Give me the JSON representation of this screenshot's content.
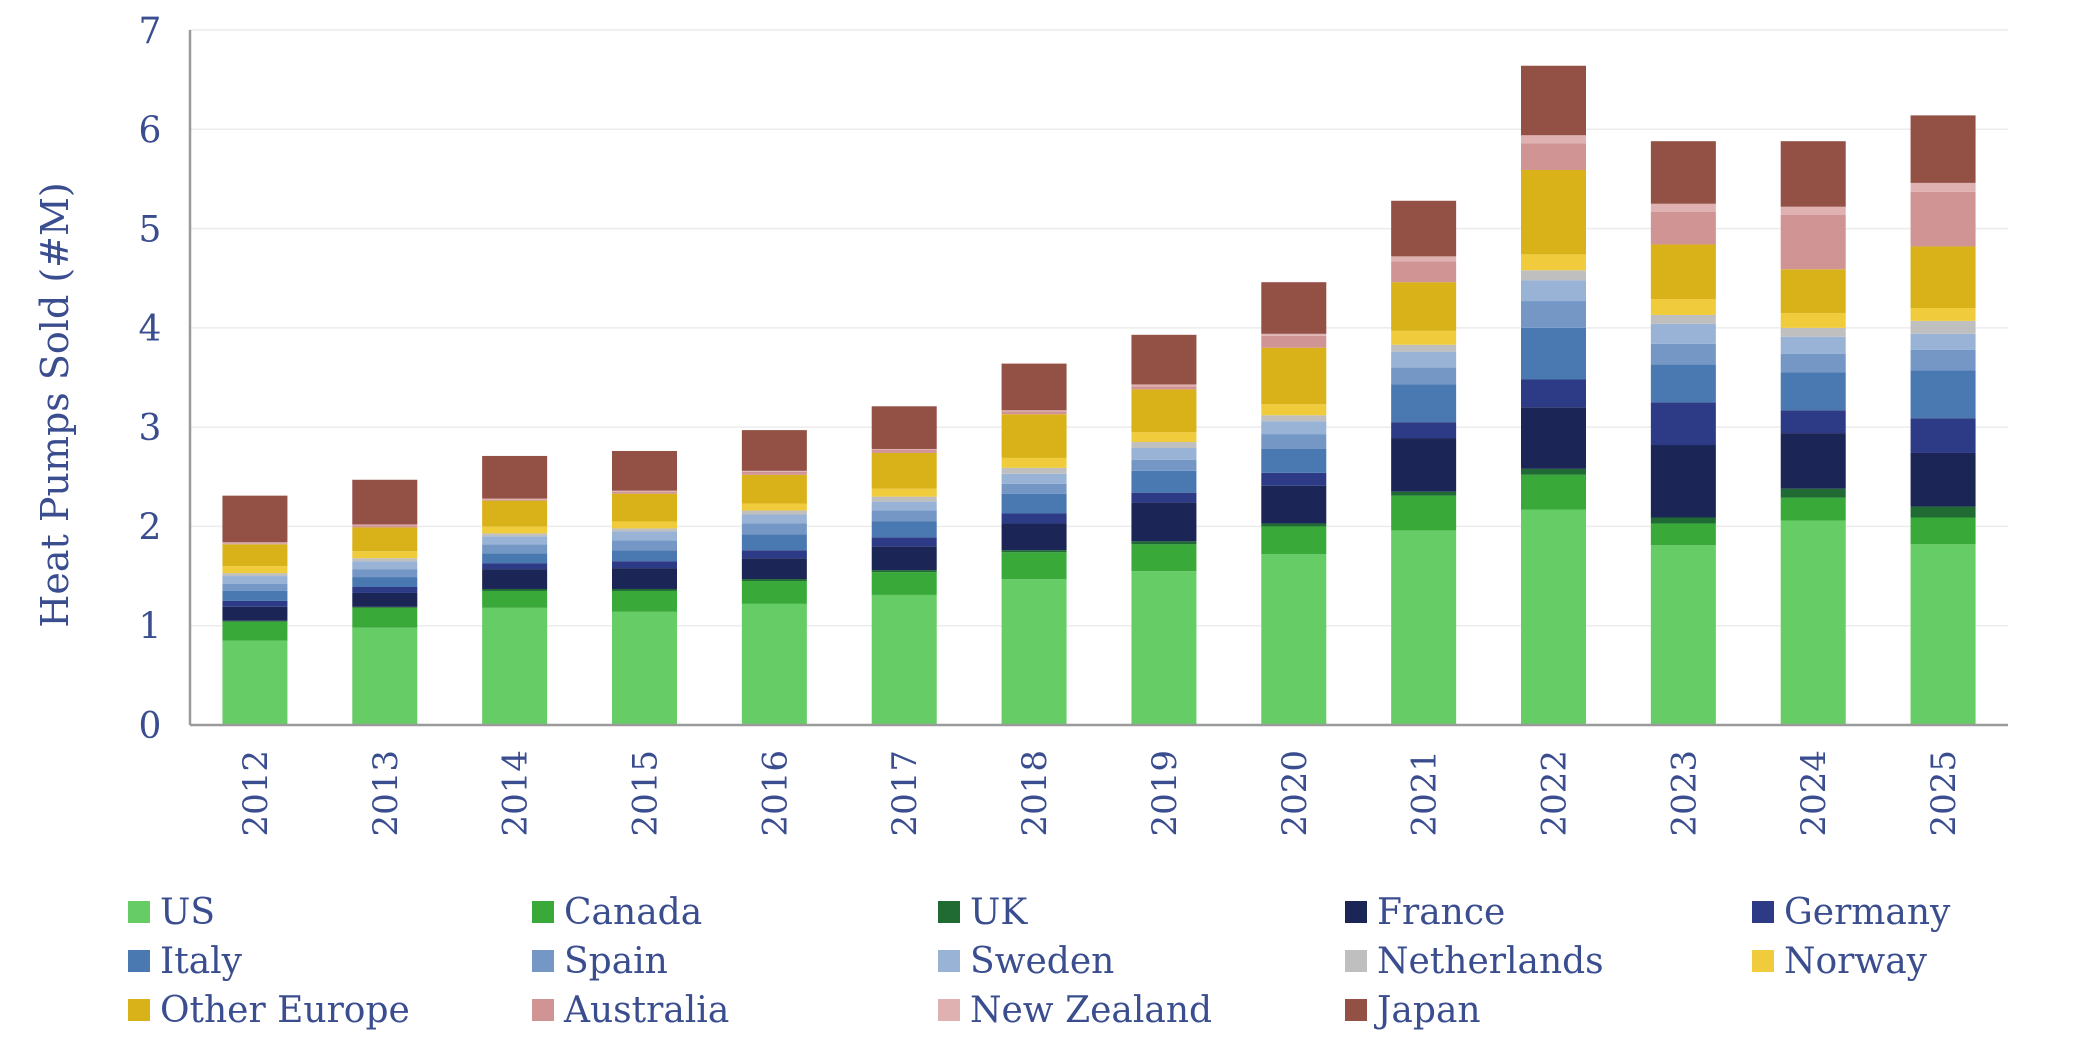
{
  "chart_data": {
    "type": "bar",
    "stacked": true,
    "title": "",
    "xlabel": "",
    "ylabel": "Heat Pumps Sold (#M)",
    "ylim": [
      0,
      7
    ],
    "yticks": [
      "0",
      "1",
      "2",
      "3",
      "4",
      "5",
      "6",
      "7"
    ],
    "grid": true,
    "legend_position": "bottom",
    "categories": [
      "2012",
      "2013",
      "2014",
      "2015",
      "2016",
      "2017",
      "2018",
      "2019",
      "2020",
      "2021",
      "2022",
      "2023",
      "2024",
      "2025"
    ],
    "series": [
      {
        "name": "US",
        "color": "#66cc66",
        "values": [
          0.85,
          0.98,
          1.18,
          1.14,
          1.22,
          1.31,
          1.47,
          1.55,
          1.72,
          1.96,
          2.17,
          1.81,
          2.06,
          1.82
        ]
      },
      {
        "name": "Canada",
        "color": "#39aa39",
        "values": [
          0.19,
          0.2,
          0.17,
          0.21,
          0.23,
          0.23,
          0.27,
          0.27,
          0.28,
          0.35,
          0.35,
          0.22,
          0.23,
          0.27
        ]
      },
      {
        "name": "UK",
        "color": "#1f6b33",
        "values": [
          0.01,
          0.01,
          0.02,
          0.02,
          0.02,
          0.02,
          0.02,
          0.03,
          0.03,
          0.04,
          0.06,
          0.06,
          0.09,
          0.11
        ]
      },
      {
        "name": "France",
        "color": "#1c2656",
        "values": [
          0.14,
          0.14,
          0.2,
          0.21,
          0.21,
          0.24,
          0.27,
          0.39,
          0.38,
          0.54,
          0.62,
          0.73,
          0.56,
          0.54
        ]
      },
      {
        "name": "Germany",
        "color": "#2d3b86",
        "values": [
          0.06,
          0.06,
          0.06,
          0.07,
          0.08,
          0.09,
          0.1,
          0.1,
          0.13,
          0.16,
          0.28,
          0.43,
          0.23,
          0.35
        ]
      },
      {
        "name": "Italy",
        "color": "#4a78b0",
        "values": [
          0.1,
          0.1,
          0.1,
          0.11,
          0.16,
          0.16,
          0.2,
          0.22,
          0.24,
          0.38,
          0.52,
          0.38,
          0.38,
          0.48
        ]
      },
      {
        "name": "Spain",
        "color": "#7597c6",
        "values": [
          0.07,
          0.08,
          0.09,
          0.1,
          0.11,
          0.11,
          0.1,
          0.11,
          0.15,
          0.17,
          0.27,
          0.21,
          0.19,
          0.21
        ]
      },
      {
        "name": "Sweden",
        "color": "#99b3d6",
        "values": [
          0.08,
          0.08,
          0.08,
          0.09,
          0.09,
          0.09,
          0.1,
          0.12,
          0.13,
          0.16,
          0.21,
          0.2,
          0.17,
          0.16
        ]
      },
      {
        "name": "Netherlands",
        "color": "#bfbfbf",
        "values": [
          0.03,
          0.03,
          0.03,
          0.03,
          0.04,
          0.05,
          0.06,
          0.06,
          0.06,
          0.07,
          0.1,
          0.09,
          0.09,
          0.13
        ]
      },
      {
        "name": "Norway",
        "color": "#f0cc3c",
        "values": [
          0.07,
          0.07,
          0.07,
          0.07,
          0.07,
          0.08,
          0.1,
          0.1,
          0.11,
          0.14,
          0.16,
          0.16,
          0.15,
          0.13
        ]
      },
      {
        "name": "Other Europe",
        "color": "#d9b219",
        "values": [
          0.22,
          0.24,
          0.26,
          0.28,
          0.29,
          0.36,
          0.44,
          0.43,
          0.57,
          0.49,
          0.85,
          0.55,
          0.44,
          0.62
        ]
      },
      {
        "name": "Australia",
        "color": "#d09494",
        "values": [
          0.01,
          0.02,
          0.01,
          0.02,
          0.03,
          0.03,
          0.03,
          0.03,
          0.12,
          0.21,
          0.27,
          0.33,
          0.55,
          0.55
        ]
      },
      {
        "name": "New Zealand",
        "color": "#e0b1b1",
        "values": [
          0.01,
          0.01,
          0.01,
          0.01,
          0.01,
          0.01,
          0.01,
          0.02,
          0.02,
          0.05,
          0.08,
          0.08,
          0.08,
          0.09
        ]
      },
      {
        "name": "Japan",
        "color": "#935146",
        "values": [
          0.47,
          0.45,
          0.43,
          0.4,
          0.41,
          0.43,
          0.47,
          0.5,
          0.52,
          0.56,
          0.7,
          0.63,
          0.66,
          0.68
        ]
      }
    ]
  }
}
